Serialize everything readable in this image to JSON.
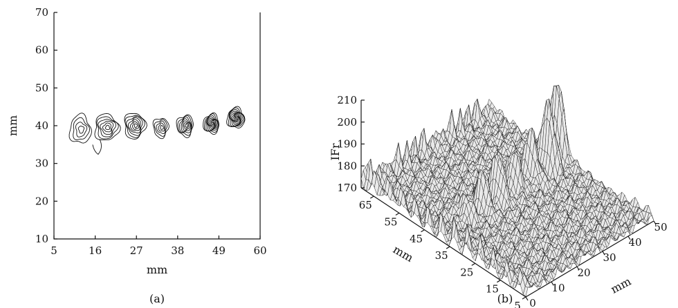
{
  "chart_data": [
    {
      "type": "contour",
      "panel_label": "(a)",
      "xlabel": "mm",
      "ylabel": "mm",
      "xlim": [
        5,
        60
      ],
      "ylim": [
        10,
        70
      ],
      "x_ticks": [
        5,
        16,
        27,
        38,
        49,
        60
      ],
      "y_ticks": [
        10,
        20,
        30,
        40,
        50,
        60,
        70
      ],
      "blobs": [
        {
          "x": 12,
          "y": 39,
          "rx": 2.8,
          "ry": 3.8,
          "levels": 4
        },
        {
          "x": 19,
          "y": 39.5,
          "rx": 3.2,
          "ry": 3.5,
          "levels": 6
        },
        {
          "x": 26.5,
          "y": 40,
          "rx": 2.8,
          "ry": 3.4,
          "levels": 7
        },
        {
          "x": 33.5,
          "y": 39.5,
          "rx": 2.0,
          "ry": 2.6,
          "levels": 5
        },
        {
          "x": 40,
          "y": 40,
          "rx": 2.2,
          "ry": 2.8,
          "levels": 7
        },
        {
          "x": 47,
          "y": 40.5,
          "rx": 2.1,
          "ry": 2.6,
          "levels": 9
        },
        {
          "x": 53.5,
          "y": 42,
          "rx": 2.3,
          "ry": 2.7,
          "levels": 10
        }
      ]
    },
    {
      "type": "surface3d",
      "panel_label": "(b)",
      "zlabel": "IFr",
      "xlabel": "mm",
      "ylabel": "mm",
      "zlim": [
        170,
        210
      ],
      "z_ticks": [
        170,
        180,
        190,
        200,
        210
      ],
      "x_ticks": [
        0,
        10,
        20,
        30,
        40,
        50
      ],
      "y_ticks": [
        5,
        15,
        25,
        35,
        45,
        55,
        65
      ],
      "peaks": [
        {
          "x": 12,
          "y": 40,
          "z": 184
        },
        {
          "x": 19,
          "y": 40,
          "z": 188
        },
        {
          "x": 26,
          "y": 40,
          "z": 192
        },
        {
          "x": 33,
          "y": 40,
          "z": 190
        },
        {
          "x": 40,
          "y": 40,
          "z": 196
        },
        {
          "x": 47,
          "y": 40,
          "z": 204
        },
        {
          "x": 53,
          "y": 42,
          "z": 209
        }
      ]
    }
  ]
}
